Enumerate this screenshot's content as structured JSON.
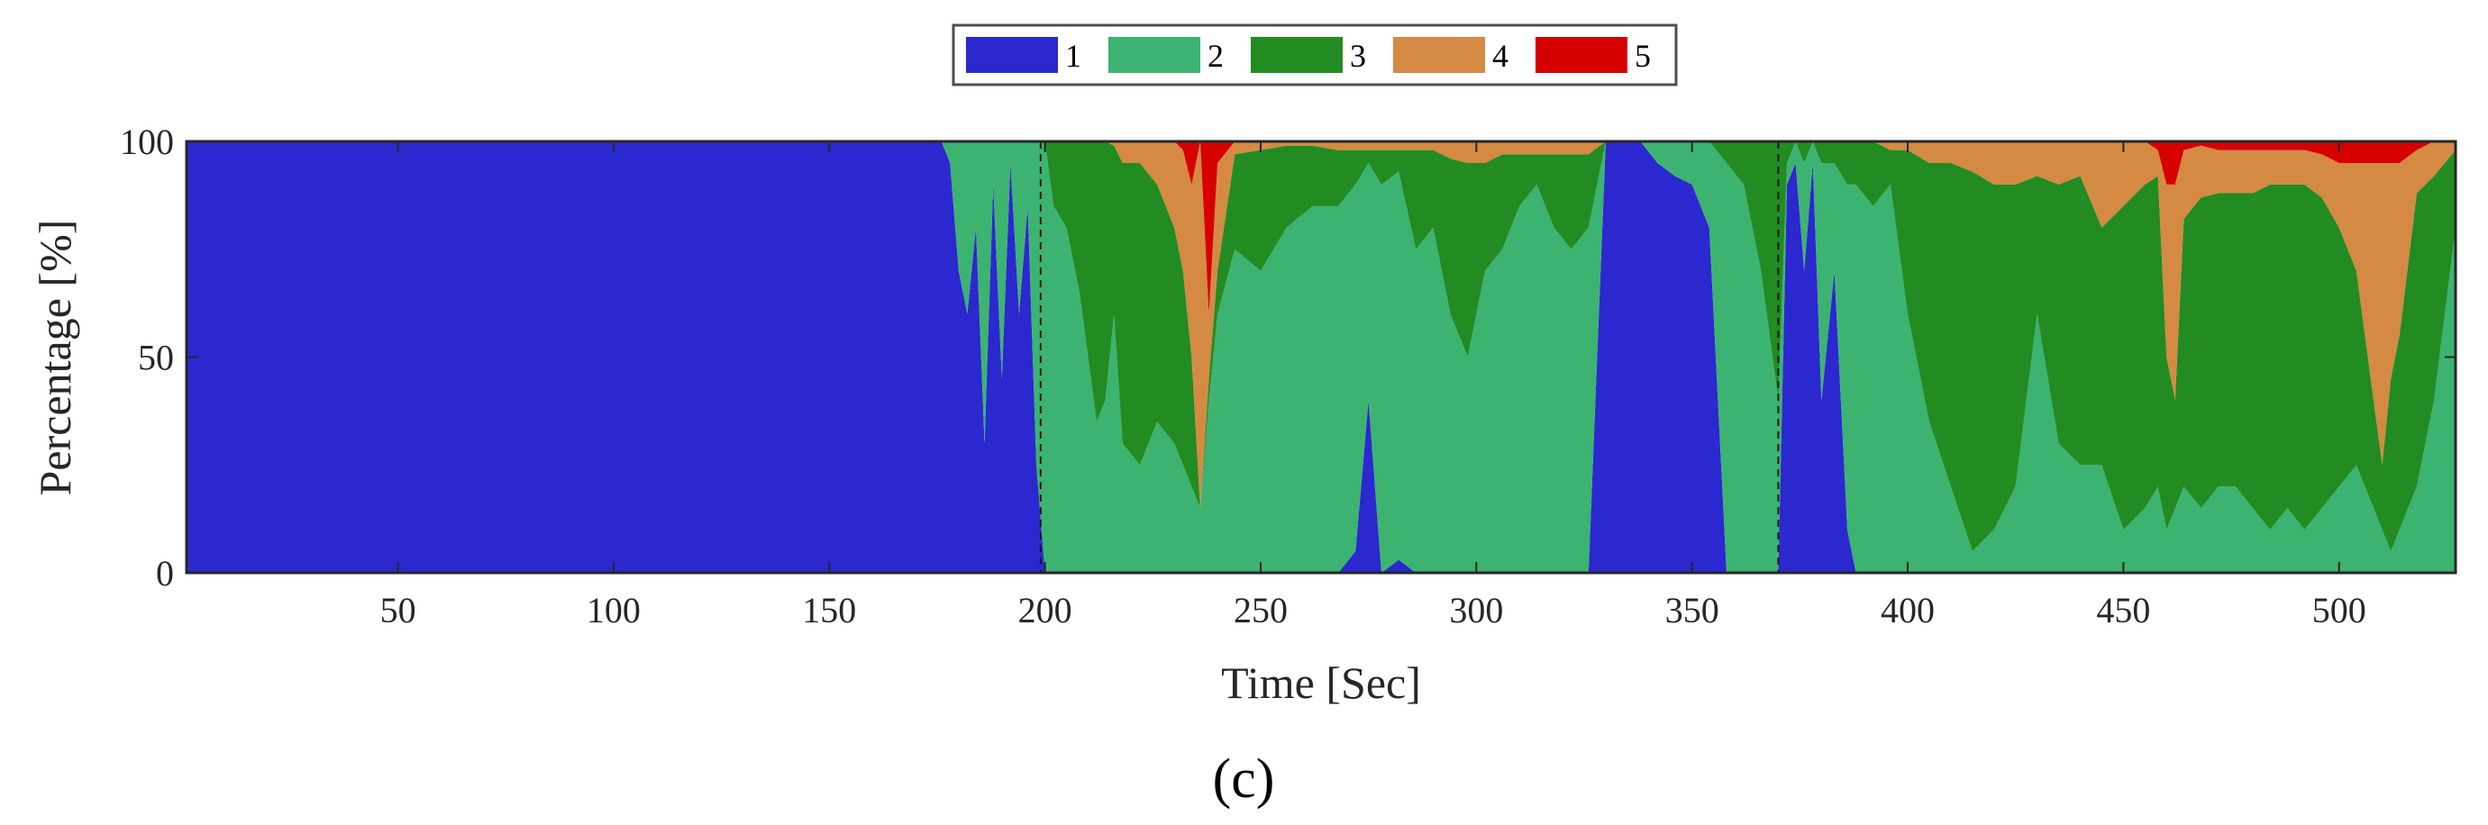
{
  "chart_data": {
    "type": "area",
    "stacked": true,
    "xlabel": "Time [Sec]",
    "ylabel": "Percentage [%]",
    "xlim": [
      1,
      527
    ],
    "ylim": [
      0,
      100
    ],
    "xticks": [
      50,
      100,
      150,
      200,
      250,
      300,
      350,
      400,
      450,
      500
    ],
    "yticks": [
      0,
      50,
      100
    ],
    "grid": false,
    "legend_placement": "top-center",
    "panel_label": "(c)",
    "x": [
      1,
      176,
      178,
      180,
      182,
      184,
      186,
      188,
      190,
      192,
      194,
      196,
      198,
      200,
      202,
      205,
      208,
      210,
      212,
      214,
      216,
      218,
      222,
      226,
      230,
      232,
      234,
      236,
      238,
      240,
      244,
      250,
      256,
      262,
      268,
      272,
      275,
      278,
      282,
      286,
      290,
      294,
      298,
      302,
      306,
      310,
      314,
      318,
      322,
      326,
      330,
      334,
      338,
      342,
      346,
      350,
      354,
      358,
      362,
      366,
      370,
      372,
      374,
      376,
      378,
      380,
      383,
      386,
      388,
      392,
      396,
      400,
      405,
      410,
      415,
      420,
      425,
      430,
      435,
      440,
      445,
      450,
      455,
      458,
      460,
      462,
      464,
      468,
      472,
      476,
      480,
      484,
      488,
      492,
      496,
      500,
      504,
      508,
      510,
      512,
      514,
      518,
      522,
      527
    ],
    "series": [
      {
        "name": "1",
        "color": "#2B28CF",
        "values": [
          100,
          100,
          95,
          70,
          60,
          80,
          30,
          90,
          45,
          95,
          60,
          85,
          25,
          0,
          0,
          0,
          0,
          0,
          0,
          0,
          0,
          0,
          0,
          0,
          0,
          0,
          0,
          0,
          0,
          0,
          0,
          0,
          0,
          0,
          0,
          5,
          40,
          0,
          3,
          0,
          0,
          0,
          0,
          0,
          0,
          0,
          0,
          0,
          0,
          0,
          100,
          100,
          100,
          95,
          92,
          90,
          80,
          0,
          0,
          0,
          0,
          90,
          95,
          70,
          95,
          40,
          70,
          10,
          0,
          0,
          0,
          0,
          0,
          0,
          0,
          0,
          0,
          0,
          0,
          0,
          0,
          0,
          0,
          0,
          0,
          0,
          0,
          0,
          0,
          0,
          0,
          0,
          0,
          0,
          0,
          0,
          0,
          0,
          0,
          0,
          0,
          0,
          0,
          0
        ]
      },
      {
        "name": "2",
        "color": "#3CB371",
        "values": [
          0,
          0,
          5,
          30,
          40,
          20,
          70,
          10,
          55,
          5,
          40,
          15,
          75,
          100,
          85,
          80,
          65,
          50,
          35,
          40,
          60,
          30,
          25,
          35,
          30,
          25,
          20,
          15,
          40,
          60,
          75,
          70,
          80,
          85,
          85,
          85,
          55,
          90,
          90,
          75,
          80,
          60,
          50,
          70,
          75,
          85,
          90,
          80,
          75,
          80,
          0,
          0,
          0,
          5,
          8,
          10,
          20,
          95,
          90,
          70,
          40,
          5,
          5,
          25,
          5,
          55,
          25,
          80,
          90,
          85,
          90,
          60,
          35,
          20,
          5,
          10,
          20,
          60,
          30,
          25,
          25,
          10,
          15,
          20,
          10,
          15,
          20,
          15,
          20,
          20,
          15,
          10,
          15,
          10,
          15,
          20,
          25,
          15,
          10,
          5,
          10,
          20,
          40,
          80
        ]
      },
      {
        "name": "3",
        "color": "#228B22",
        "values": [
          0,
          0,
          0,
          0,
          0,
          0,
          0,
          0,
          0,
          0,
          0,
          0,
          0,
          0,
          15,
          20,
          35,
          50,
          65,
          60,
          39,
          65,
          70,
          55,
          50,
          45,
          30,
          0,
          5,
          10,
          22,
          28,
          19,
          14,
          13,
          8,
          3,
          8,
          5,
          23,
          18,
          36,
          45,
          25,
          22,
          12,
          7,
          17,
          22,
          17,
          0,
          0,
          0,
          0,
          0,
          0,
          0,
          5,
          10,
          30,
          60,
          5,
          0,
          5,
          0,
          5,
          5,
          10,
          10,
          15,
          8,
          38,
          60,
          75,
          88,
          80,
          70,
          32,
          60,
          67,
          55,
          75,
          75,
          72,
          40,
          25,
          62,
          72,
          68,
          68,
          73,
          80,
          75,
          80,
          72,
          60,
          45,
          25,
          15,
          40,
          45,
          68,
          52,
          18
        ]
      },
      {
        "name": "4",
        "color": "#D48A43",
        "values": [
          0,
          0,
          0,
          0,
          0,
          0,
          0,
          0,
          0,
          0,
          0,
          0,
          0,
          0,
          0,
          0,
          0,
          0,
          0,
          0,
          1,
          5,
          5,
          10,
          20,
          28,
          40,
          85,
          15,
          25,
          3,
          2,
          1,
          1,
          2,
          2,
          2,
          2,
          2,
          2,
          2,
          4,
          5,
          5,
          3,
          3,
          3,
          3,
          3,
          3,
          0,
          0,
          0,
          0,
          0,
          0,
          0,
          0,
          0,
          0,
          0,
          0,
          0,
          0,
          0,
          0,
          0,
          0,
          0,
          0,
          2,
          2,
          5,
          5,
          7,
          10,
          10,
          8,
          10,
          8,
          20,
          15,
          10,
          6,
          40,
          50,
          16,
          12,
          10,
          10,
          10,
          8,
          8,
          8,
          10,
          15,
          25,
          55,
          70,
          50,
          40,
          10,
          8,
          2
        ]
      },
      {
        "name": "5",
        "color": "#D60000",
        "values": [
          0,
          0,
          0,
          0,
          0,
          0,
          0,
          0,
          0,
          0,
          0,
          0,
          0,
          0,
          0,
          0,
          0,
          0,
          0,
          0,
          0,
          0,
          0,
          0,
          0,
          2,
          10,
          0,
          40,
          5,
          0,
          0,
          0,
          0,
          0,
          0,
          0,
          0,
          0,
          0,
          0,
          0,
          0,
          0,
          0,
          0,
          0,
          0,
          0,
          0,
          0,
          0,
          0,
          0,
          0,
          0,
          0,
          0,
          0,
          0,
          0,
          0,
          0,
          0,
          0,
          0,
          0,
          0,
          0,
          0,
          0,
          0,
          0,
          0,
          0,
          0,
          0,
          0,
          0,
          0,
          0,
          0,
          0,
          2,
          10,
          10,
          2,
          1,
          2,
          2,
          2,
          2,
          2,
          2,
          3,
          5,
          5,
          5,
          5,
          5,
          5,
          2,
          0,
          0
        ]
      }
    ]
  }
}
